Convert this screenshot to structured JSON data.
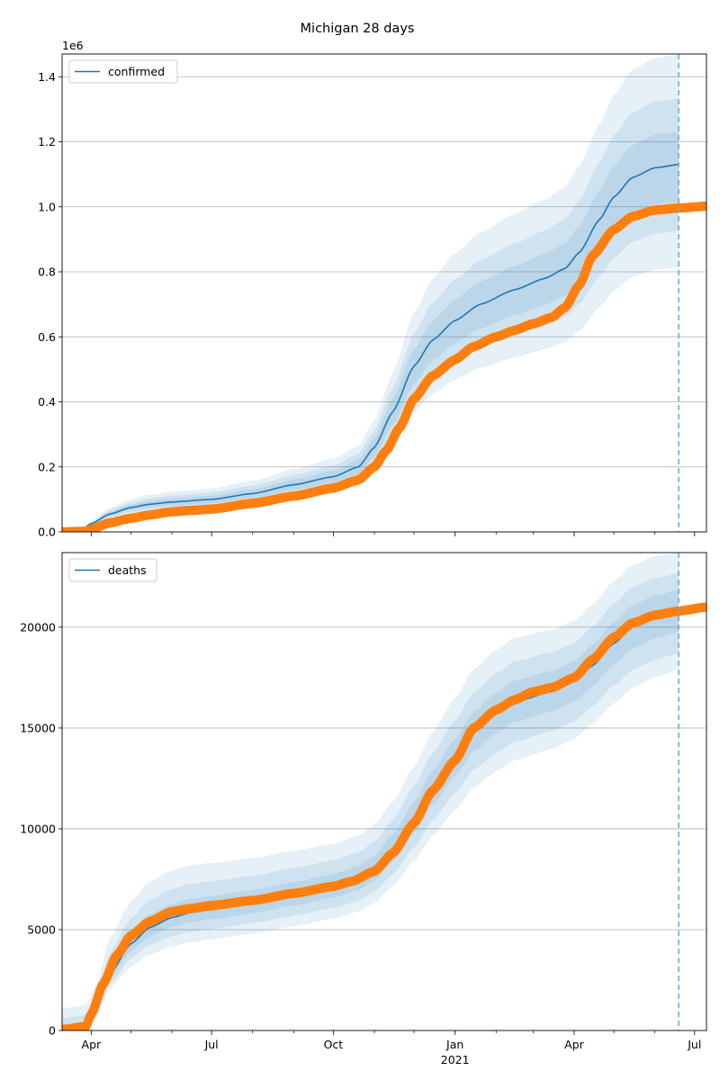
{
  "chart_data": {
    "title": "Michigan 28 days",
    "x_tick_labels": [
      {
        "date": "2020-04-01",
        "label": "Apr",
        "sub": ""
      },
      {
        "date": "2020-07-01",
        "label": "Jul",
        "sub": ""
      },
      {
        "date": "2020-10-01",
        "label": "Oct",
        "sub": ""
      },
      {
        "date": "2021-01-01",
        "label": "Jan",
        "sub": "2021"
      },
      {
        "date": "2021-04-01",
        "label": "Apr",
        "sub": ""
      },
      {
        "date": "2021-07-01",
        "label": "Jul",
        "sub": ""
      }
    ],
    "x_minor_ticks": [
      "2020-05-01",
      "2020-06-01",
      "2020-08-01",
      "2020-09-01",
      "2020-11-01",
      "2020-12-01",
      "2021-02-01",
      "2021-03-01",
      "2021-05-01",
      "2021-06-01"
    ],
    "xlim": [
      "2020-03-10",
      "2021-07-10"
    ],
    "forecast_date": "2021-06-19",
    "panels": [
      {
        "type": "line",
        "legend": "confirmed",
        "legend_position": "upper left",
        "offset_text": "1e6",
        "ylim": [
          0,
          1470000
        ],
        "y_ticks": [
          0,
          200000,
          400000,
          600000,
          800000,
          1000000,
          1200000,
          1400000
        ],
        "y_tick_labels": [
          "0.0",
          "0.2",
          "0.4",
          "0.6",
          "0.8",
          "1.0",
          "1.2",
          "1.4"
        ],
        "grid": true,
        "model": [
          [
            "2020-03-10",
            0
          ],
          [
            "2020-03-25",
            8000
          ],
          [
            "2020-04-01",
            25000
          ],
          [
            "2020-04-15",
            55000
          ],
          [
            "2020-05-01",
            75000
          ],
          [
            "2020-05-15",
            85000
          ],
          [
            "2020-06-01",
            92000
          ],
          [
            "2020-07-01",
            100000
          ],
          [
            "2020-08-01",
            118000
          ],
          [
            "2020-09-01",
            145000
          ],
          [
            "2020-10-01",
            170000
          ],
          [
            "2020-10-20",
            200000
          ],
          [
            "2020-11-01",
            260000
          ],
          [
            "2020-11-15",
            370000
          ],
          [
            "2020-12-01",
            510000
          ],
          [
            "2020-12-15",
            590000
          ],
          [
            "2021-01-01",
            650000
          ],
          [
            "2021-01-20",
            700000
          ],
          [
            "2021-02-15",
            745000
          ],
          [
            "2021-03-10",
            780000
          ],
          [
            "2021-03-25",
            810000
          ],
          [
            "2021-04-05",
            860000
          ],
          [
            "2021-04-20",
            960000
          ],
          [
            "2021-05-01",
            1030000
          ],
          [
            "2021-05-15",
            1090000
          ],
          [
            "2021-06-01",
            1120000
          ],
          [
            "2021-06-19",
            1130000
          ]
        ],
        "bands": [
          {
            "lower": [
              0.72,
              0.72
            ],
            "upper": [
              1.35,
              1.3
            ]
          },
          {
            "lower": [
              0.8,
              0.82
            ],
            "upper": [
              1.22,
              1.18
            ]
          },
          {
            "lower": [
              0.88,
              0.9
            ],
            "upper": [
              1.12,
              1.09
            ]
          }
        ],
        "observed": [
          [
            "2020-03-10",
            0
          ],
          [
            "2020-03-28",
            2000
          ],
          [
            "2020-04-01",
            8000
          ],
          [
            "2020-04-15",
            28000
          ],
          [
            "2020-05-01",
            42000
          ],
          [
            "2020-05-15",
            52000
          ],
          [
            "2020-06-01",
            62000
          ],
          [
            "2020-06-15",
            66000
          ],
          [
            "2020-07-01",
            70000
          ],
          [
            "2020-08-01",
            88000
          ],
          [
            "2020-09-01",
            110000
          ],
          [
            "2020-10-01",
            135000
          ],
          [
            "2020-10-20",
            160000
          ],
          [
            "2020-11-01",
            200000
          ],
          [
            "2020-11-10",
            250000
          ],
          [
            "2020-11-20",
            320000
          ],
          [
            "2020-12-01",
            410000
          ],
          [
            "2020-12-15",
            480000
          ],
          [
            "2021-01-01",
            530000
          ],
          [
            "2021-01-15",
            570000
          ],
          [
            "2021-02-01",
            600000
          ],
          [
            "2021-02-15",
            620000
          ],
          [
            "2021-03-01",
            640000
          ],
          [
            "2021-03-15",
            660000
          ],
          [
            "2021-03-25",
            690000
          ],
          [
            "2021-04-05",
            760000
          ],
          [
            "2021-04-15",
            850000
          ],
          [
            "2021-05-01",
            930000
          ],
          [
            "2021-05-15",
            970000
          ],
          [
            "2021-06-01",
            990000
          ],
          [
            "2021-06-19",
            996000
          ],
          [
            "2021-07-10",
            1002000
          ]
        ]
      },
      {
        "type": "line",
        "legend": "deaths",
        "legend_position": "upper left",
        "offset_text": "",
        "ylim": [
          0,
          23700
        ],
        "y_ticks": [
          0,
          5000,
          10000,
          15000,
          20000
        ],
        "y_tick_labels": [
          "0",
          "5000",
          "10000",
          "15000",
          "20000"
        ],
        "grid": true,
        "model": [
          [
            "2020-03-10",
            0
          ],
          [
            "2020-03-28",
            150
          ],
          [
            "2020-04-05",
            1000
          ],
          [
            "2020-04-15",
            2800
          ],
          [
            "2020-05-01",
            4300
          ],
          [
            "2020-05-15",
            5100
          ],
          [
            "2020-06-01",
            5600
          ],
          [
            "2020-06-15",
            5850
          ],
          [
            "2020-07-01",
            6000
          ],
          [
            "2020-08-01",
            6300
          ],
          [
            "2020-09-01",
            6700
          ],
          [
            "2020-10-01",
            7100
          ],
          [
            "2020-10-20",
            7500
          ],
          [
            "2020-11-01",
            8000
          ],
          [
            "2020-11-15",
            9000
          ],
          [
            "2020-12-01",
            10500
          ],
          [
            "2020-12-15",
            12000
          ],
          [
            "2021-01-01",
            13500
          ],
          [
            "2021-01-15",
            14800
          ],
          [
            "2021-02-01",
            15700
          ],
          [
            "2021-02-15",
            16300
          ],
          [
            "2021-03-15",
            16800
          ],
          [
            "2021-04-01",
            17300
          ],
          [
            "2021-04-15",
            18100
          ],
          [
            "2021-05-01",
            19200
          ],
          [
            "2021-05-15",
            20000
          ],
          [
            "2021-06-01",
            20500
          ],
          [
            "2021-06-19",
            20800
          ]
        ],
        "bands": [
          {
            "lower": [
              0.72,
              0.86
            ],
            "upper": [
              1.28,
              1.14
            ],
            "floor": 1100
          },
          {
            "lower": [
              0.82,
              0.9
            ],
            "upper": [
              1.18,
              1.09
            ],
            "floor": 600
          },
          {
            "lower": [
              0.91,
              0.95
            ],
            "upper": [
              1.09,
              1.05
            ],
            "floor": 250
          }
        ],
        "observed": [
          [
            "2020-03-10",
            50
          ],
          [
            "2020-03-28",
            200
          ],
          [
            "2020-04-01",
            800
          ],
          [
            "2020-04-10",
            2300
          ],
          [
            "2020-04-20",
            3700
          ],
          [
            "2020-05-01",
            4700
          ],
          [
            "2020-05-15",
            5400
          ],
          [
            "2020-06-01",
            5900
          ],
          [
            "2020-06-15",
            6050
          ],
          [
            "2020-07-01",
            6200
          ],
          [
            "2020-08-01",
            6450
          ],
          [
            "2020-09-01",
            6800
          ],
          [
            "2020-10-01",
            7150
          ],
          [
            "2020-10-15",
            7400
          ],
          [
            "2020-11-01",
            7900
          ],
          [
            "2020-11-15",
            8800
          ],
          [
            "2020-12-01",
            10300
          ],
          [
            "2020-12-15",
            11900
          ],
          [
            "2021-01-01",
            13400
          ],
          [
            "2021-01-15",
            15000
          ],
          [
            "2021-02-01",
            15900
          ],
          [
            "2021-02-15",
            16400
          ],
          [
            "2021-03-01",
            16800
          ],
          [
            "2021-03-15",
            17000
          ],
          [
            "2021-04-01",
            17500
          ],
          [
            "2021-04-15",
            18400
          ],
          [
            "2021-05-01",
            19500
          ],
          [
            "2021-05-15",
            20200
          ],
          [
            "2021-06-01",
            20600
          ],
          [
            "2021-06-19",
            20800
          ],
          [
            "2021-07-10",
            21000
          ]
        ]
      }
    ],
    "colors": {
      "model": "#1f77b4",
      "observed": "#ff7f0e",
      "band": "#1f77b4",
      "grid": "#b0b0b0",
      "forecast_line": "#6baed6"
    }
  }
}
